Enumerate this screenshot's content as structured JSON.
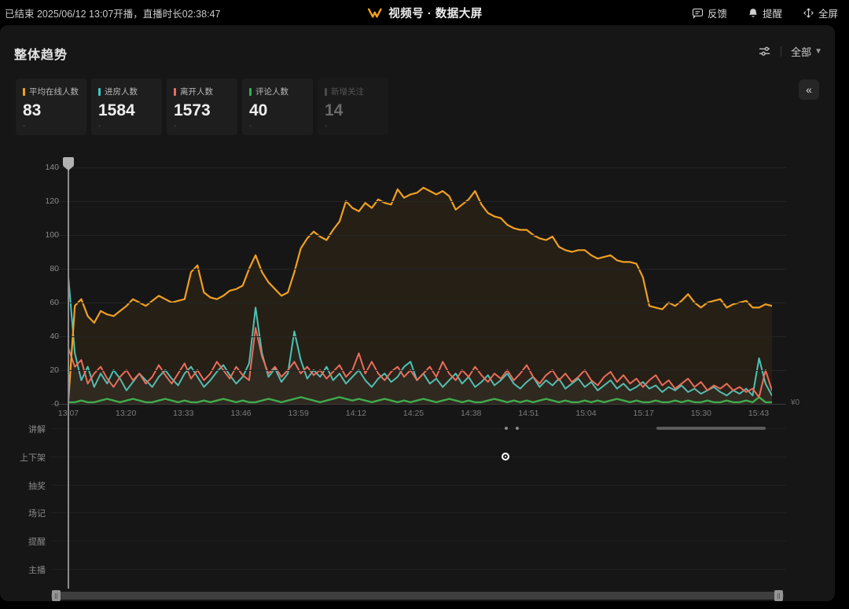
{
  "topbar": {
    "status": "已结束 2025/06/12 13:07开播，直播时长02:38:47",
    "title": "视频号 · 数据大屏",
    "actions": [
      {
        "name": "feedback-button",
        "icon": "feedback-icon",
        "label": "反馈"
      },
      {
        "name": "reminder-button",
        "icon": "bell-icon",
        "label": "提醒"
      },
      {
        "name": "fullscreen-button",
        "icon": "fullscreen-icon",
        "label": "全屏"
      }
    ]
  },
  "section": {
    "title": "整体趋势",
    "filter_all_label": "全部",
    "collapse_icon": "«"
  },
  "stat_cards": [
    {
      "label": "平均在线人数",
      "value": "83",
      "sub": "-",
      "color": "#F0A020",
      "active": true
    },
    {
      "label": "进房人数",
      "value": "1584",
      "sub": "-",
      "color": "#3FC6C0",
      "active": true
    },
    {
      "label": "离开人数",
      "value": "1573",
      "sub": "-",
      "color": "#E96A5F",
      "active": true
    },
    {
      "label": "评论人数",
      "value": "40",
      "sub": "-",
      "color": "#2BB24C",
      "active": true
    },
    {
      "label": "新增关注",
      "value": "14",
      "sub": "-",
      "color": "#4a4a4a",
      "active": false
    }
  ],
  "chart_data": {
    "type": "line",
    "title": "整体趋势",
    "ylim": [
      0,
      140
    ],
    "y_ticks": [
      0,
      20,
      40,
      60,
      80,
      100,
      120,
      140
    ],
    "x_ticks": [
      "13:07",
      "13:20",
      "13:33",
      "13:46",
      "13:59",
      "14:12",
      "14:25",
      "14:38",
      "14:51",
      "15:04",
      "15:17",
      "15:30",
      "15:43"
    ],
    "right_axis_label": "¥0",
    "legend_position": "cards-top-left",
    "grid": true,
    "series": [
      {
        "name": "平均在线人数",
        "color": "#F0A020",
        "values": [
          2,
          58,
          62,
          52,
          48,
          55,
          53,
          52,
          55,
          58,
          62,
          60,
          58,
          61,
          64,
          62,
          60,
          61,
          62,
          78,
          82,
          66,
          63,
          62,
          64,
          67,
          68,
          70,
          80,
          88,
          78,
          72,
          68,
          64,
          66,
          78,
          92,
          98,
          102,
          99,
          97,
          103,
          108,
          120,
          116,
          114,
          119,
          116,
          121,
          119,
          118,
          127,
          122,
          124,
          125,
          128,
          126,
          124,
          126,
          123,
          115,
          118,
          121,
          126,
          118,
          113,
          111,
          110,
          106,
          104,
          103,
          103,
          100,
          98,
          97,
          99,
          93,
          91,
          90,
          91,
          91,
          88,
          86,
          87,
          88,
          85,
          84,
          84,
          83,
          75,
          58,
          57,
          56,
          60,
          58,
          61,
          65,
          60,
          57,
          60,
          61,
          62,
          57,
          59,
          60,
          61,
          57,
          57,
          59,
          58
        ]
      },
      {
        "name": "进房人数",
        "color": "#3FC6C0",
        "values": [
          75,
          30,
          14,
          22,
          10,
          18,
          12,
          20,
          15,
          8,
          13,
          18,
          14,
          10,
          16,
          20,
          15,
          11,
          18,
          22,
          16,
          10,
          14,
          19,
          23,
          17,
          12,
          16,
          24,
          57,
          30,
          16,
          21,
          13,
          18,
          43,
          26,
          15,
          20,
          16,
          22,
          14,
          18,
          12,
          16,
          20,
          14,
          10,
          15,
          18,
          13,
          16,
          22,
          25,
          14,
          18,
          12,
          15,
          10,
          14,
          18,
          12,
          16,
          10,
          13,
          17,
          11,
          14,
          18,
          12,
          9,
          13,
          16,
          10,
          14,
          11,
          15,
          9,
          12,
          15,
          10,
          13,
          8,
          11,
          14,
          9,
          12,
          8,
          10,
          13,
          9,
          11,
          7,
          10,
          8,
          11,
          7,
          9,
          6,
          8,
          10,
          7,
          5,
          8,
          6,
          9,
          5,
          27,
          12,
          5
        ]
      },
      {
        "name": "离开人数",
        "color": "#E96A5F",
        "values": [
          33,
          22,
          26,
          12,
          18,
          22,
          15,
          10,
          16,
          20,
          14,
          18,
          12,
          16,
          23,
          17,
          12,
          18,
          24,
          15,
          20,
          14,
          18,
          25,
          20,
          15,
          22,
          17,
          14,
          45,
          28,
          18,
          22,
          16,
          20,
          25,
          18,
          22,
          17,
          20,
          15,
          19,
          23,
          16,
          20,
          30,
          18,
          25,
          18,
          14,
          19,
          22,
          16,
          20,
          14,
          18,
          22,
          16,
          25,
          18,
          14,
          20,
          16,
          22,
          17,
          13,
          18,
          15,
          20,
          14,
          18,
          23,
          16,
          12,
          17,
          20,
          14,
          18,
          13,
          16,
          20,
          14,
          11,
          16,
          19,
          13,
          17,
          12,
          15,
          10,
          14,
          17,
          11,
          14,
          9,
          12,
          15,
          10,
          13,
          8,
          11,
          9,
          12,
          8,
          10,
          7,
          9,
          4,
          20,
          8
        ]
      },
      {
        "name": "评论人数",
        "color": "#2BB24C",
        "values": [
          1,
          1,
          2,
          1,
          1,
          2,
          3,
          2,
          1,
          2,
          3,
          2,
          1,
          1,
          2,
          3,
          2,
          1,
          2,
          1,
          1,
          2,
          1,
          2,
          3,
          2,
          1,
          2,
          1,
          1,
          2,
          3,
          2,
          1,
          2,
          3,
          4,
          3,
          2,
          1,
          2,
          3,
          4,
          3,
          2,
          3,
          2,
          1,
          2,
          3,
          2,
          1,
          2,
          1,
          2,
          3,
          2,
          1,
          2,
          3,
          2,
          1,
          2,
          1,
          1,
          2,
          3,
          2,
          1,
          2,
          1,
          2,
          1,
          2,
          3,
          2,
          1,
          2,
          1,
          1,
          2,
          1,
          2,
          1,
          2,
          3,
          2,
          1,
          2,
          1,
          1,
          2,
          1,
          1,
          2,
          1,
          2,
          1,
          1,
          2,
          1,
          1,
          2,
          1,
          1,
          2,
          1,
          4,
          1,
          1
        ]
      }
    ]
  },
  "event_rows": [
    {
      "label": "讲解",
      "dots": [
        0.622,
        0.638
      ],
      "segment": [
        0.836,
        0.991
      ]
    },
    {
      "label": "上下架",
      "circle": 0.621
    },
    {
      "label": "抽奖"
    },
    {
      "label": "场记"
    },
    {
      "label": "提醒"
    },
    {
      "label": "主播"
    }
  ]
}
